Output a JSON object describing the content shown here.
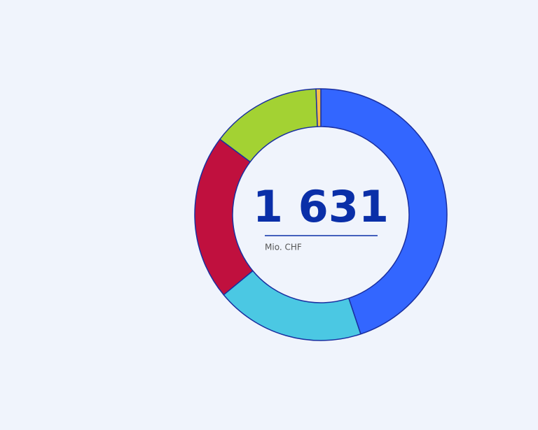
{
  "chart_data": {
    "type": "donut",
    "total_label": "1 631",
    "unit": "Mio. CHF",
    "values": [
      732,
      312,
      346,
      231,
      10
    ],
    "colors": [
      "#3366ff",
      "#4bc8e3",
      "#c0103e",
      "#a3d233",
      "#f5c04a"
    ],
    "stroke": "#1a2fa0"
  }
}
